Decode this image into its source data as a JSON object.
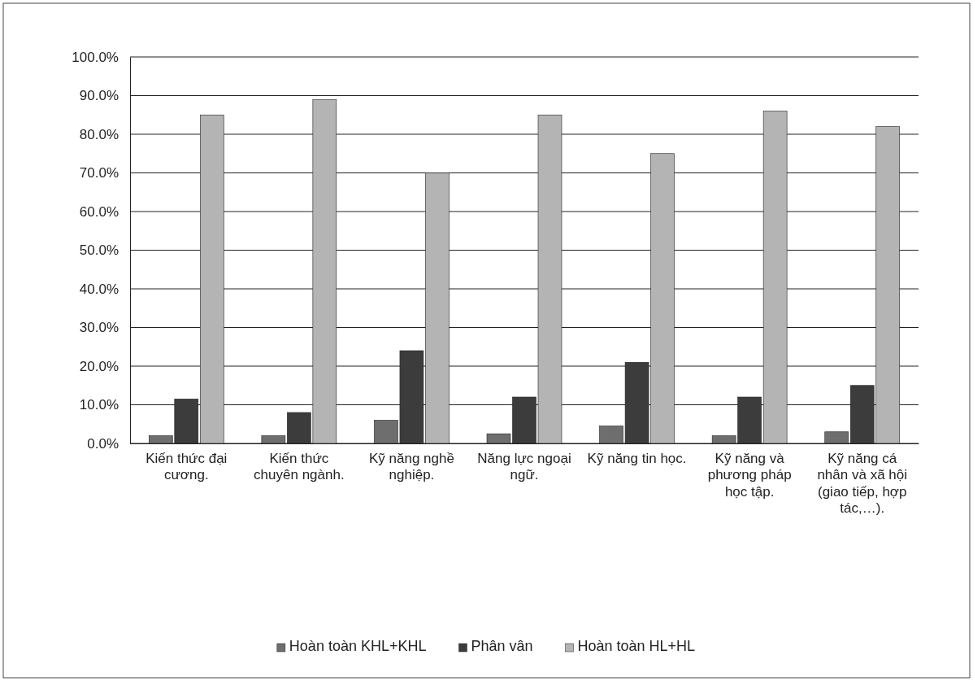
{
  "chart_data": {
    "type": "bar",
    "categories": [
      "Kiến thức đại cương.",
      "Kiến thức chuyên ngành.",
      "Kỹ năng nghề nghiệp.",
      "Năng lực ngoại ngữ.",
      "Kỹ năng tin học.",
      "Kỹ năng và phương pháp học tập.",
      "Kỹ năng cá nhân và xã hội (giao tiếp, hợp tác,…)."
    ],
    "series": [
      {
        "name": "Hoàn toàn KHL+KHL",
        "color": "#6e6e6e",
        "values": [
          2,
          2,
          6,
          2.5,
          4.5,
          2,
          3
        ]
      },
      {
        "name": "Phân vân",
        "color": "#3c3c3c",
        "values": [
          11.5,
          8,
          24,
          12,
          21,
          12,
          15
        ]
      },
      {
        "name": "Hoàn toàn HL+HL",
        "color": "#b4b4b4",
        "values": [
          85,
          89,
          70,
          85,
          75,
          86,
          82
        ]
      }
    ],
    "ylim": [
      0,
      100
    ],
    "yticks": [
      {
        "value": 0,
        "label": "0.0%"
      },
      {
        "value": 10,
        "label": "10.0%"
      },
      {
        "value": 20,
        "label": "20.0%"
      },
      {
        "value": 30,
        "label": "30.0%"
      },
      {
        "value": 40,
        "label": "40.0%"
      },
      {
        "value": 50,
        "label": "50.0%"
      },
      {
        "value": 60,
        "label": "60.0%"
      },
      {
        "value": 70,
        "label": "70.0%"
      },
      {
        "value": 80,
        "label": "80.0%"
      },
      {
        "value": 90,
        "label": "90.0%"
      },
      {
        "value": 100,
        "label": "100.0%"
      }
    ],
    "grid": "y",
    "legend": "bottom"
  }
}
